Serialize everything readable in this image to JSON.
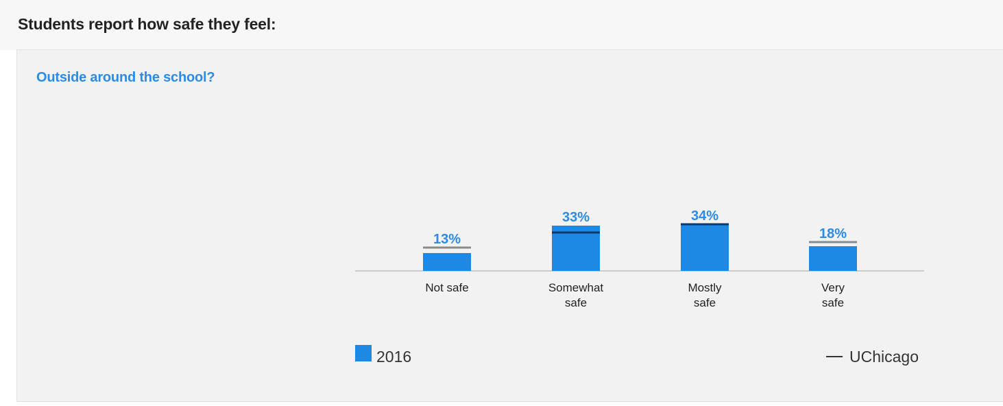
{
  "page": {
    "heading": "Students report how safe they feel:"
  },
  "panel": {
    "question": "Outside around the school?"
  },
  "chart_data": {
    "type": "bar",
    "categories": [
      [
        "Not safe"
      ],
      [
        "Somewhat",
        "safe"
      ],
      [
        "Mostly",
        "safe"
      ],
      [
        "Very",
        "safe"
      ]
    ],
    "series": [
      {
        "name": "2016",
        "values": [
          13,
          33,
          34,
          18
        ]
      },
      {
        "name": "UChicago",
        "values": [
          17,
          28,
          34,
          21
        ]
      }
    ],
    "data_labels": [
      "13%",
      "33%",
      "34%",
      "18%"
    ],
    "ylim": [
      0,
      40
    ],
    "grid": false,
    "colors": {
      "bar": "#1e88e5",
      "label": "#2b8be6",
      "benchmark_dark": "#0d3a66",
      "benchmark_gray": "#8a8a8a",
      "baseline": "#cccccc"
    },
    "legend": {
      "placement": "bottom",
      "primary": "2016",
      "benchmark": "UChicago"
    }
  }
}
